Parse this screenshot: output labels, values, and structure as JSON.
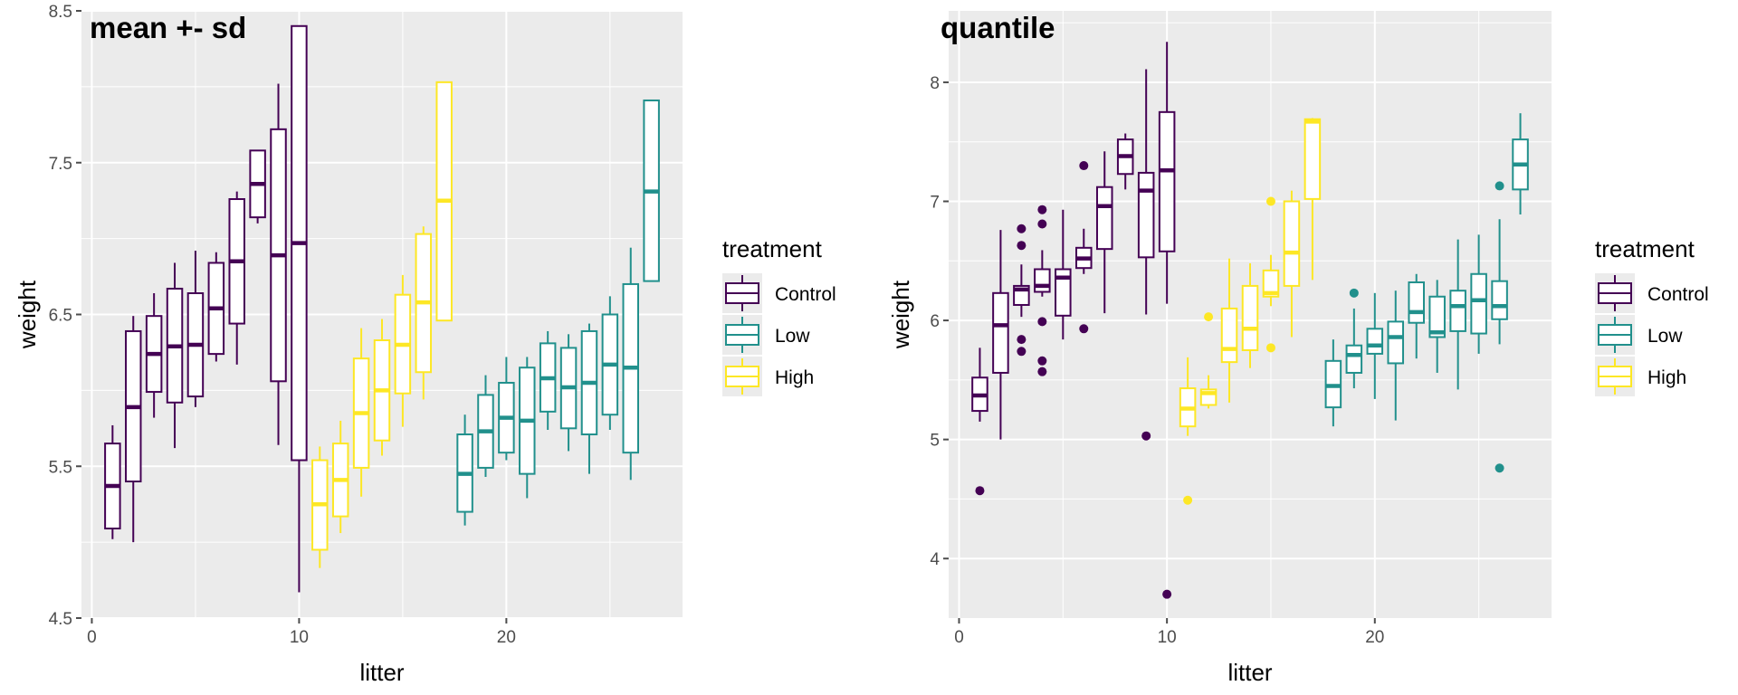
{
  "colors": {
    "Control": "#440154",
    "Low": "#21908C",
    "High": "#FDE725",
    "panel_bg": "#EBEBEB",
    "grid": "#FFFFFF",
    "tick": "#4D4D4D"
  },
  "legend": {
    "title": "treatment",
    "entries": [
      "Control",
      "Low",
      "High"
    ]
  },
  "chart_data": [
    {
      "type": "box",
      "title": "mean +- sd",
      "xlabel": "litter",
      "ylabel": "weight",
      "xlim": [
        -0.5,
        28.5
      ],
      "ylim": [
        4.5,
        8.5
      ],
      "x_ticks": [
        0,
        10,
        20
      ],
      "y_ticks": [
        4.5,
        5.5,
        6.5,
        7.5,
        8.5
      ],
      "y_tick_labels": [
        "4.5",
        "5.5",
        "6.5",
        "7.5",
        "8.5"
      ],
      "boxes": [
        {
          "litter": 1,
          "treatment": "Control",
          "lower": 5.09,
          "middle": 5.37,
          "upper": 5.65,
          "ymin": 5.02,
          "ymax": 5.77
        },
        {
          "litter": 2,
          "treatment": "Control",
          "lower": 5.4,
          "middle": 5.89,
          "upper": 6.39,
          "ymin": 5.0,
          "ymax": 6.49
        },
        {
          "litter": 3,
          "treatment": "Control",
          "lower": 5.99,
          "middle": 6.24,
          "upper": 6.49,
          "ymin": 5.82,
          "ymax": 6.64
        },
        {
          "litter": 4,
          "treatment": "Control",
          "lower": 5.92,
          "middle": 6.29,
          "upper": 6.67,
          "ymin": 5.62,
          "ymax": 6.84
        },
        {
          "litter": 5,
          "treatment": "Control",
          "lower": 5.96,
          "middle": 6.3,
          "upper": 6.64,
          "ymin": 5.89,
          "ymax": 6.92
        },
        {
          "litter": 6,
          "treatment": "Control",
          "lower": 6.24,
          "middle": 6.54,
          "upper": 6.84,
          "ymin": 6.19,
          "ymax": 6.91
        },
        {
          "litter": 7,
          "treatment": "Control",
          "lower": 6.44,
          "middle": 6.85,
          "upper": 7.26,
          "ymin": 6.17,
          "ymax": 7.31
        },
        {
          "litter": 8,
          "treatment": "Control",
          "lower": 7.14,
          "middle": 7.36,
          "upper": 7.58,
          "ymin": 7.1,
          "ymax": 7.58
        },
        {
          "litter": 9,
          "treatment": "Control",
          "lower": 6.06,
          "middle": 6.89,
          "upper": 7.72,
          "ymin": 5.64,
          "ymax": 8.02
        },
        {
          "litter": 10,
          "treatment": "Control",
          "lower": 5.54,
          "middle": 6.97,
          "upper": 8.4,
          "ymin": 4.67,
          "ymax": 8.4
        },
        {
          "litter": 11,
          "treatment": "High",
          "lower": 4.95,
          "middle": 5.25,
          "upper": 5.54,
          "ymin": 4.83,
          "ymax": 5.63
        },
        {
          "litter": 12,
          "treatment": "High",
          "lower": 5.17,
          "middle": 5.41,
          "upper": 5.65,
          "ymin": 5.06,
          "ymax": 5.8
        },
        {
          "litter": 13,
          "treatment": "High",
          "lower": 5.49,
          "middle": 5.85,
          "upper": 6.21,
          "ymin": 5.3,
          "ymax": 6.41
        },
        {
          "litter": 14,
          "treatment": "High",
          "lower": 5.67,
          "middle": 6.0,
          "upper": 6.33,
          "ymin": 5.57,
          "ymax": 6.47
        },
        {
          "litter": 15,
          "treatment": "High",
          "lower": 5.98,
          "middle": 6.3,
          "upper": 6.63,
          "ymin": 5.76,
          "ymax": 6.76
        },
        {
          "litter": 16,
          "treatment": "High",
          "lower": 6.12,
          "middle": 6.58,
          "upper": 7.03,
          "ymin": 5.94,
          "ymax": 7.08
        },
        {
          "litter": 17,
          "treatment": "High",
          "lower": 6.46,
          "middle": 7.25,
          "upper": 8.03,
          "ymin": 6.46,
          "ymax": 8.03
        },
        {
          "litter": 18,
          "treatment": "Low",
          "lower": 5.2,
          "middle": 5.45,
          "upper": 5.71,
          "ymin": 5.11,
          "ymax": 5.84
        },
        {
          "litter": 19,
          "treatment": "Low",
          "lower": 5.49,
          "middle": 5.73,
          "upper": 5.97,
          "ymin": 5.43,
          "ymax": 6.1
        },
        {
          "litter": 20,
          "treatment": "Low",
          "lower": 5.59,
          "middle": 5.82,
          "upper": 6.05,
          "ymin": 5.54,
          "ymax": 6.22
        },
        {
          "litter": 21,
          "treatment": "Low",
          "lower": 5.45,
          "middle": 5.8,
          "upper": 6.15,
          "ymin": 5.29,
          "ymax": 6.22
        },
        {
          "litter": 22,
          "treatment": "Low",
          "lower": 5.86,
          "middle": 6.08,
          "upper": 6.31,
          "ymin": 5.74,
          "ymax": 6.39
        },
        {
          "litter": 23,
          "treatment": "Low",
          "lower": 5.75,
          "middle": 6.02,
          "upper": 6.28,
          "ymin": 5.6,
          "ymax": 6.37
        },
        {
          "litter": 24,
          "treatment": "Low",
          "lower": 5.71,
          "middle": 6.05,
          "upper": 6.39,
          "ymin": 5.45,
          "ymax": 6.44
        },
        {
          "litter": 25,
          "treatment": "Low",
          "lower": 5.84,
          "middle": 6.17,
          "upper": 6.5,
          "ymin": 5.74,
          "ymax": 6.62
        },
        {
          "litter": 26,
          "treatment": "Low",
          "lower": 5.59,
          "middle": 6.15,
          "upper": 6.7,
          "ymin": 5.41,
          "ymax": 6.94
        },
        {
          "litter": 27,
          "treatment": "Low",
          "lower": 6.72,
          "middle": 7.31,
          "upper": 7.91,
          "ymin": 6.72,
          "ymax": 7.91
        }
      ]
    },
    {
      "type": "box",
      "title": "quantile",
      "xlabel": "litter",
      "ylabel": "weight",
      "xlim": [
        -0.5,
        28.5
      ],
      "ylim": [
        3.5,
        8.6
      ],
      "x_ticks": [
        0,
        10,
        20
      ],
      "y_ticks": [
        4,
        5,
        6,
        7,
        8
      ],
      "y_tick_labels": [
        "4",
        "5",
        "6",
        "7",
        "8"
      ],
      "boxes": [
        {
          "litter": 1,
          "treatment": "Control",
          "lower": 5.24,
          "middle": 5.37,
          "upper": 5.52,
          "ymin": 5.15,
          "ymax": 5.77,
          "outliers": [
            4.57
          ]
        },
        {
          "litter": 2,
          "treatment": "Control",
          "lower": 5.56,
          "middle": 5.96,
          "upper": 6.23,
          "ymin": 5.0,
          "ymax": 6.76,
          "outliers": []
        },
        {
          "litter": 3,
          "treatment": "Control",
          "lower": 6.13,
          "middle": 6.26,
          "upper": 6.29,
          "ymin": 6.03,
          "ymax": 6.47,
          "outliers": [
            6.77,
            6.63,
            5.84,
            5.74
          ]
        },
        {
          "litter": 4,
          "treatment": "Control",
          "lower": 6.24,
          "middle": 6.29,
          "upper": 6.43,
          "ymin": 6.2,
          "ymax": 6.59,
          "outliers": [
            6.93,
            6.81,
            5.99,
            5.66,
            5.57
          ]
        },
        {
          "litter": 5,
          "treatment": "Control",
          "lower": 6.04,
          "middle": 6.36,
          "upper": 6.43,
          "ymin": 5.84,
          "ymax": 6.93,
          "outliers": []
        },
        {
          "litter": 6,
          "treatment": "Control",
          "lower": 6.44,
          "middle": 6.52,
          "upper": 6.61,
          "ymin": 6.39,
          "ymax": 6.77,
          "outliers": [
            7.3,
            5.93
          ]
        },
        {
          "litter": 7,
          "treatment": "Control",
          "lower": 6.6,
          "middle": 6.96,
          "upper": 7.12,
          "ymin": 6.06,
          "ymax": 7.42,
          "outliers": []
        },
        {
          "litter": 8,
          "treatment": "Control",
          "lower": 7.23,
          "middle": 7.38,
          "upper": 7.52,
          "ymin": 7.1,
          "ymax": 7.57,
          "outliers": []
        },
        {
          "litter": 9,
          "treatment": "Control",
          "lower": 6.53,
          "middle": 7.09,
          "upper": 7.24,
          "ymin": 6.05,
          "ymax": 8.11,
          "outliers": [
            5.03
          ]
        },
        {
          "litter": 10,
          "treatment": "Control",
          "lower": 6.58,
          "middle": 7.26,
          "upper": 7.75,
          "ymin": 6.14,
          "ymax": 8.34,
          "outliers": [
            3.7
          ]
        },
        {
          "litter": 11,
          "treatment": "High",
          "lower": 5.11,
          "middle": 5.26,
          "upper": 5.43,
          "ymin": 5.03,
          "ymax": 5.69,
          "outliers": [
            4.49
          ]
        },
        {
          "litter": 12,
          "treatment": "High",
          "lower": 5.29,
          "middle": 5.39,
          "upper": 5.42,
          "ymin": 5.26,
          "ymax": 5.54,
          "outliers": [
            6.03
          ]
        },
        {
          "litter": 13,
          "treatment": "High",
          "lower": 5.65,
          "middle": 5.76,
          "upper": 6.1,
          "ymin": 5.31,
          "ymax": 6.52,
          "outliers": []
        },
        {
          "litter": 14,
          "treatment": "High",
          "lower": 5.75,
          "middle": 5.93,
          "upper": 6.29,
          "ymin": 5.6,
          "ymax": 6.48,
          "outliers": []
        },
        {
          "litter": 15,
          "treatment": "High",
          "lower": 6.2,
          "middle": 6.23,
          "upper": 6.42,
          "ymin": 6.12,
          "ymax": 6.55,
          "outliers": [
            7.0,
            5.77
          ]
        },
        {
          "litter": 16,
          "treatment": "High",
          "lower": 6.29,
          "middle": 6.57,
          "upper": 7.0,
          "ymin": 5.86,
          "ymax": 7.09,
          "outliers": []
        },
        {
          "litter": 17,
          "treatment": "High",
          "lower": 7.02,
          "middle": 7.67,
          "upper": 7.69,
          "ymin": 6.34,
          "ymax": 7.7,
          "outliers": []
        },
        {
          "litter": 18,
          "treatment": "Low",
          "lower": 5.27,
          "middle": 5.45,
          "upper": 5.66,
          "ymin": 5.11,
          "ymax": 5.84,
          "outliers": []
        },
        {
          "litter": 19,
          "treatment": "Low",
          "lower": 5.56,
          "middle": 5.71,
          "upper": 5.79,
          "ymin": 5.43,
          "ymax": 6.1,
          "outliers": [
            6.23
          ]
        },
        {
          "litter": 20,
          "treatment": "Low",
          "lower": 5.72,
          "middle": 5.79,
          "upper": 5.93,
          "ymin": 5.34,
          "ymax": 6.23,
          "outliers": []
        },
        {
          "litter": 21,
          "treatment": "Low",
          "lower": 5.64,
          "middle": 5.86,
          "upper": 5.99,
          "ymin": 5.16,
          "ymax": 6.25,
          "outliers": []
        },
        {
          "litter": 22,
          "treatment": "Low",
          "lower": 5.98,
          "middle": 6.07,
          "upper": 6.32,
          "ymin": 5.68,
          "ymax": 6.39,
          "outliers": []
        },
        {
          "litter": 23,
          "treatment": "Low",
          "lower": 5.86,
          "middle": 5.9,
          "upper": 6.2,
          "ymin": 5.56,
          "ymax": 6.34,
          "outliers": []
        },
        {
          "litter": 24,
          "treatment": "Low",
          "lower": 5.91,
          "middle": 6.12,
          "upper": 6.25,
          "ymin": 5.42,
          "ymax": 6.68,
          "outliers": []
        },
        {
          "litter": 25,
          "treatment": "Low",
          "lower": 5.89,
          "middle": 6.17,
          "upper": 6.39,
          "ymin": 5.72,
          "ymax": 6.72,
          "outliers": []
        },
        {
          "litter": 26,
          "treatment": "Low",
          "lower": 6.01,
          "middle": 6.12,
          "upper": 6.33,
          "ymin": 5.8,
          "ymax": 6.85,
          "outliers": [
            7.13,
            4.76
          ]
        },
        {
          "litter": 27,
          "treatment": "Low",
          "lower": 7.1,
          "middle": 7.31,
          "upper": 7.52,
          "ymin": 6.89,
          "ymax": 7.74,
          "outliers": []
        }
      ]
    }
  ]
}
